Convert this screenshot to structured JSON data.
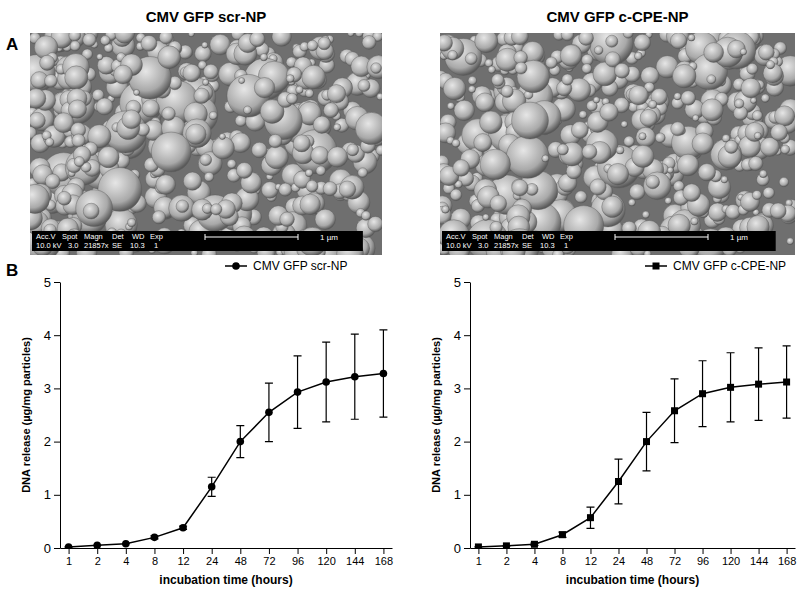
{
  "images": {
    "label": "A",
    "items": [
      {
        "title": "CMV GFP scr-NP",
        "info_header": [
          "Acc.V",
          "Spot",
          "Magn",
          "Det",
          "WD",
          "Exp"
        ],
        "info_values": [
          "10.0 kV",
          "3.0",
          "21857x",
          "SE",
          "10.3",
          "1"
        ],
        "scale_bar": "1 µm"
      },
      {
        "title": "CMV GFP c-CPE-NP",
        "info_header": [
          "Acc.V",
          "Spot",
          "Magn",
          "Det",
          "WD",
          "Exp"
        ],
        "info_values": [
          "10.0 kV",
          "3.0",
          "21857x",
          "SE",
          "10.3",
          "1"
        ],
        "scale_bar": "1 µm"
      }
    ]
  },
  "chart_panel_label": "B",
  "chart_data": [
    {
      "type": "line",
      "x_label": "incubation time (hours)",
      "y_label": "DNA release (µg/mg particles)",
      "categories": [
        "1",
        "2",
        "4",
        "8",
        "12",
        "24",
        "48",
        "72",
        "96",
        "120",
        "144",
        "168"
      ],
      "ylim": [
        0,
        5
      ],
      "yticks": [
        0,
        1,
        2,
        3,
        4,
        5
      ],
      "series": [
        {
          "name": "CMV GFP scr-NP",
          "color": "#000000",
          "marker": "circle",
          "values": [
            0.02,
            0.05,
            0.08,
            0.2,
            0.38,
            1.15,
            2.0,
            2.55,
            2.93,
            3.12,
            3.22,
            3.28
          ],
          "errors": [
            0,
            0,
            0,
            0.03,
            0.03,
            0.18,
            0.3,
            0.55,
            0.68,
            0.75,
            0.8,
            0.82
          ]
        }
      ]
    },
    {
      "type": "line",
      "x_label": "incubation time (hours)",
      "y_label": "DNA release (µg/mg particles)",
      "categories": [
        "1",
        "2",
        "4",
        "8",
        "12",
        "24",
        "48",
        "72",
        "96",
        "120",
        "144",
        "168"
      ],
      "ylim": [
        0,
        5
      ],
      "yticks": [
        0,
        1,
        2,
        3,
        4,
        5
      ],
      "series": [
        {
          "name": "CMV GFP c-CPE-NP",
          "color": "#000000",
          "marker": "square",
          "values": [
            0.02,
            0.04,
            0.07,
            0.25,
            0.57,
            1.25,
            2.0,
            2.58,
            2.9,
            3.02,
            3.08,
            3.12
          ],
          "errors": [
            0,
            0,
            0.02,
            0.05,
            0.2,
            0.42,
            0.55,
            0.6,
            0.62,
            0.65,
            0.68,
            0.68
          ]
        }
      ]
    }
  ]
}
